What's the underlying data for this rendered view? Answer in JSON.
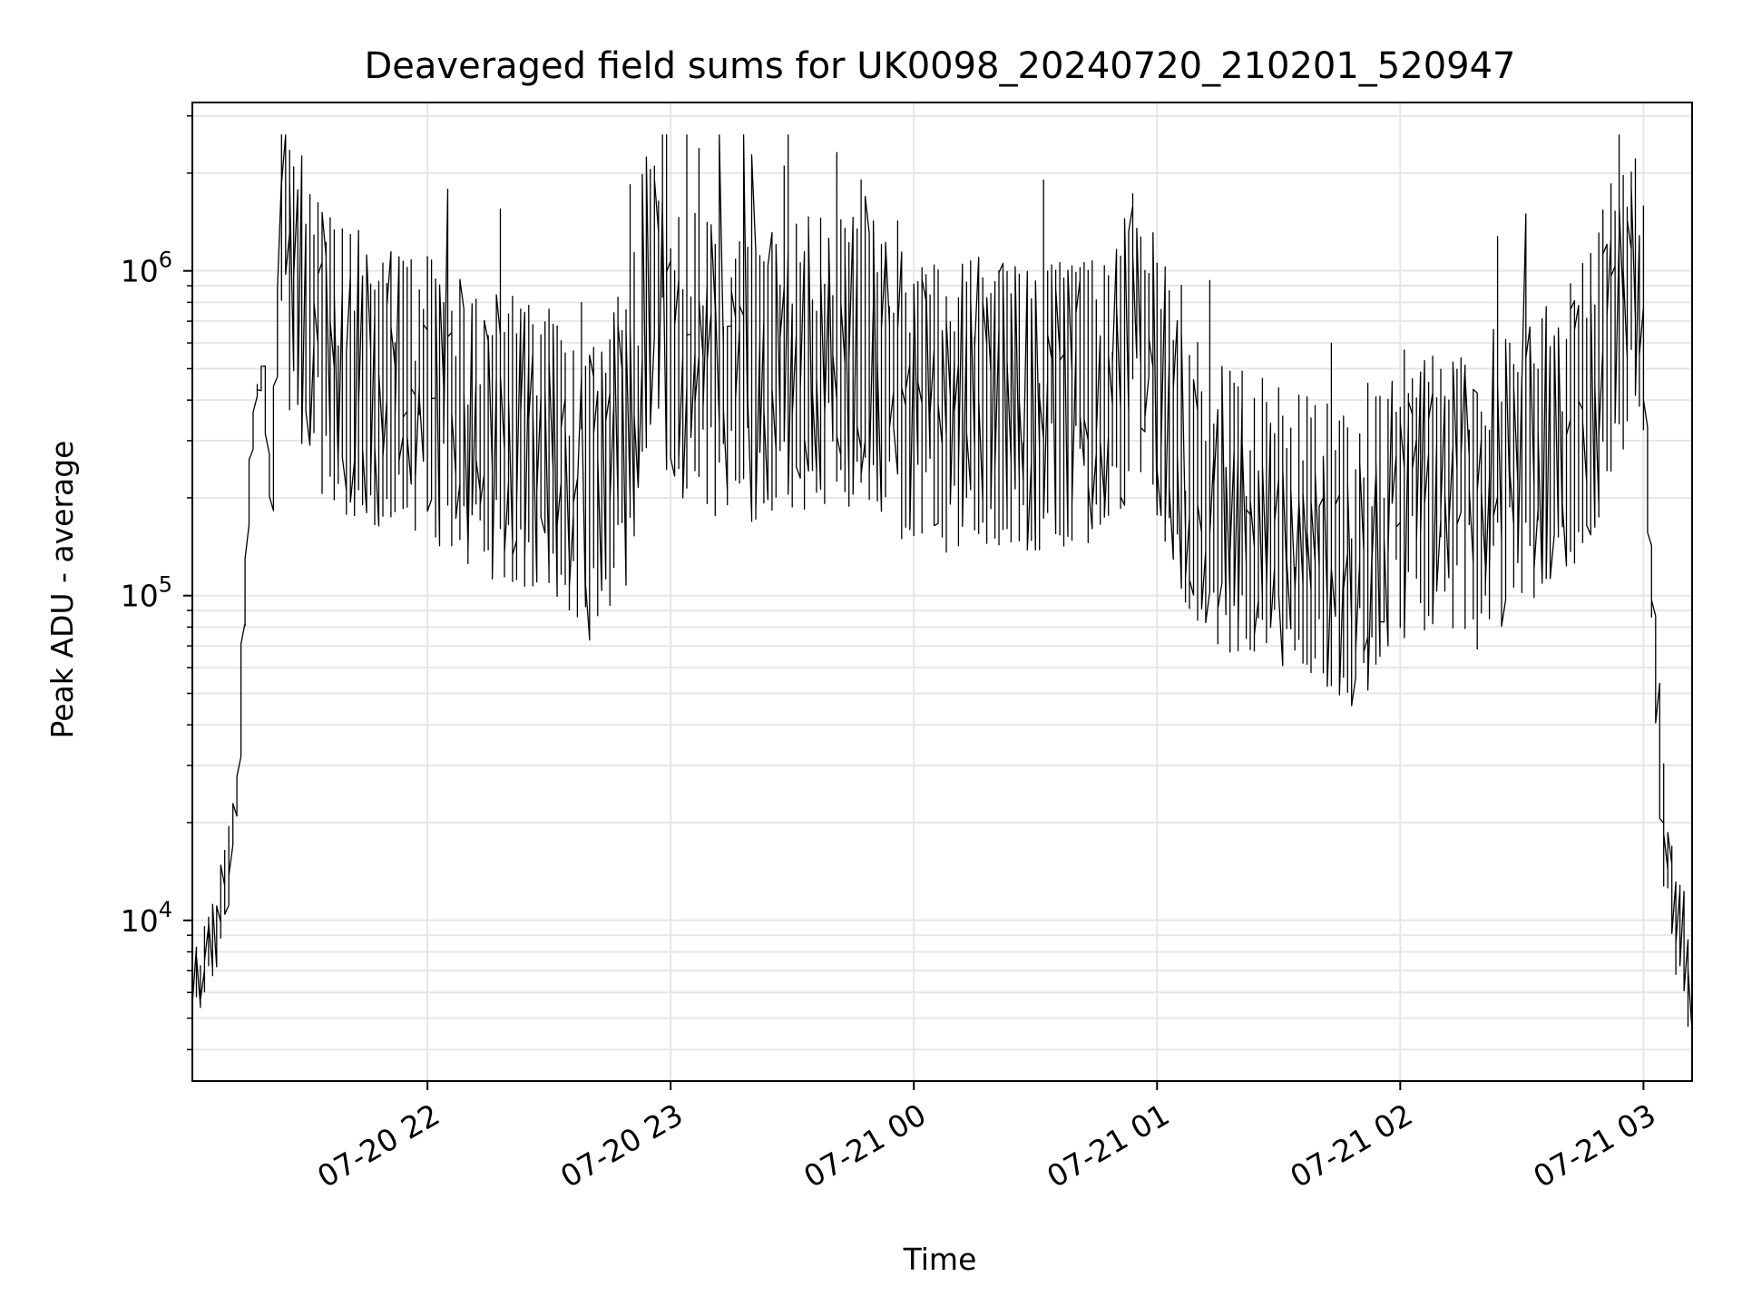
{
  "chart_data": {
    "type": "line",
    "title": "Deaveraged field sums for UK0098_20240720_210201_520947",
    "xlabel": "Time",
    "ylabel": "Peak ADU - average",
    "y_scale": "log",
    "ylim": [
      3200,
      3300000
    ],
    "xlim": [
      "2024-07-20 21:02",
      "2024-07-21 03:12"
    ],
    "x_ticks": [
      {
        "value": "2024-07-20 22:00",
        "label": "07-20 22"
      },
      {
        "value": "2024-07-20 23:00",
        "label": "07-20 23"
      },
      {
        "value": "2024-07-21 00:00",
        "label": "07-21 00"
      },
      {
        "value": "2024-07-21 01:00",
        "label": "07-21 01"
      },
      {
        "value": "2024-07-21 02:00",
        "label": "07-21 02"
      },
      {
        "value": "2024-07-21 03:00",
        "label": "07-21 03"
      }
    ],
    "y_ticks": [
      {
        "value": 10000,
        "base": "10",
        "exp": "4"
      },
      {
        "value": 100000,
        "base": "10",
        "exp": "5"
      },
      {
        "value": 1000000,
        "base": "10",
        "exp": "6"
      }
    ],
    "grid": true,
    "grid_minor_y": true,
    "line_color": "#000000",
    "grid_color": "#e6e6e6",
    "series": [
      {
        "x": [
          "2024-07-20 21:02",
          "2024-07-20 21:05",
          "2024-07-20 21:08",
          "2024-07-20 21:10",
          "2024-07-20 21:12",
          "2024-07-20 21:14",
          "2024-07-20 21:15",
          "2024-07-20 21:16",
          "2024-07-20 21:17",
          "2024-07-20 21:18",
          "2024-07-20 21:20",
          "2024-07-20 21:22",
          "2024-07-20 21:24",
          "2024-07-20 21:25",
          "2024-07-20 21:26",
          "2024-07-20 21:30",
          "2024-07-20 21:35",
          "2024-07-20 21:40",
          "2024-07-20 21:50",
          "2024-07-20 22:00",
          "2024-07-20 22:10",
          "2024-07-20 22:20",
          "2024-07-20 22:30",
          "2024-07-20 22:40",
          "2024-07-20 22:50",
          "2024-07-20 22:55",
          "2024-07-20 23:00",
          "2024-07-20 23:10",
          "2024-07-20 23:20",
          "2024-07-20 23:30",
          "2024-07-20 23:40",
          "2024-07-20 23:50",
          "2024-07-21 00:00",
          "2024-07-21 00:10",
          "2024-07-21 00:20",
          "2024-07-21 00:30",
          "2024-07-21 00:40",
          "2024-07-21 00:50",
          "2024-07-21 00:55",
          "2024-07-21 01:00",
          "2024-07-21 01:10",
          "2024-07-21 01:20",
          "2024-07-21 01:30",
          "2024-07-21 01:40",
          "2024-07-21 01:50",
          "2024-07-21 02:00",
          "2024-07-21 02:10",
          "2024-07-21 02:20",
          "2024-07-21 02:30",
          "2024-07-21 02:40",
          "2024-07-21 02:50",
          "2024-07-21 02:55",
          "2024-07-21 03:00",
          "2024-07-21 03:02",
          "2024-07-21 03:04",
          "2024-07-21 03:06",
          "2024-07-21 03:08",
          "2024-07-21 03:10",
          "2024-07-21 03:12"
        ],
        "y": [
          6000,
          7000,
          9000,
          12000,
          16000,
          30000,
          70000,
          150000,
          250000,
          400000,
          500000,
          180000,
          1000000,
          1600000,
          1100000,
          800000,
          550000,
          500000,
          450000,
          400000,
          350000,
          300000,
          280000,
          200000,
          300000,
          900000,
          600000,
          500000,
          450000,
          500000,
          550000,
          500000,
          380000,
          380000,
          400000,
          380000,
          380000,
          420000,
          700000,
          400000,
          220000,
          180000,
          170000,
          150000,
          120000,
          200000,
          220000,
          180000,
          250000,
          300000,
          500000,
          700000,
          900000,
          150000,
          40000,
          15000,
          11000,
          9000,
          6000
        ]
      }
    ]
  }
}
